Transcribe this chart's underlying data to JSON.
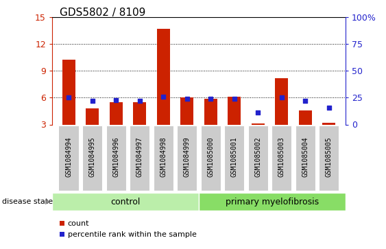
{
  "title": "GDS5802 / 8109",
  "samples": [
    "GSM1084994",
    "GSM1084995",
    "GSM1084996",
    "GSM1084997",
    "GSM1084998",
    "GSM1084999",
    "GSM1085000",
    "GSM1085001",
    "GSM1085002",
    "GSM1085003",
    "GSM1085004",
    "GSM1085005"
  ],
  "counts": [
    10.3,
    4.8,
    5.5,
    5.5,
    13.7,
    6.0,
    5.9,
    6.1,
    3.1,
    8.2,
    4.6,
    3.2
  ],
  "percentile_ranks": [
    25,
    22,
    23,
    22,
    26,
    24,
    24,
    24,
    11,
    25,
    22,
    16
  ],
  "group_labels": [
    "control",
    "primary myelofibrosis"
  ],
  "group_sizes": [
    6,
    6
  ],
  "bar_color": "#cc2200",
  "dot_color": "#2222cc",
  "ylim_left": [
    3,
    15
  ],
  "ylim_right": [
    0,
    100
  ],
  "yticks_left": [
    3,
    6,
    9,
    12,
    15
  ],
  "yticks_right": [
    0,
    25,
    50,
    75,
    100
  ],
  "grid_values": [
    6,
    9,
    12
  ],
  "left_axis_color": "#cc2200",
  "right_axis_color": "#2222cc",
  "xtick_bg": "#cccccc",
  "legend_count_label": "count",
  "legend_percentile_label": "percentile rank within the sample",
  "disease_state_label": "disease state",
  "control_color": "#bbeeaa",
  "primary_color": "#88dd66"
}
